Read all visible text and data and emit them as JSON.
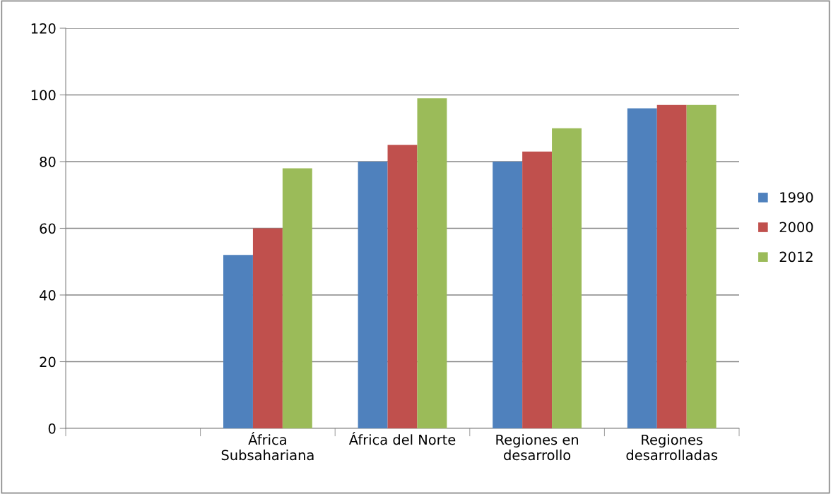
{
  "chart_data": {
    "type": "bar",
    "categories": [
      null,
      "África\nSubsahariana",
      "África del Norte",
      "Regiones en\ndesarrollo",
      "Regiones\ndesarrolladas"
    ],
    "series": [
      {
        "name": "1990",
        "color": "#4f81bd",
        "values": [
          null,
          52,
          80,
          80,
          96
        ]
      },
      {
        "name": "2000",
        "color": "#c0504d",
        "values": [
          null,
          60,
          85,
          83,
          97
        ]
      },
      {
        "name": "2012",
        "color": "#9bbb59",
        "values": [
          null,
          78,
          99,
          90,
          97
        ]
      }
    ],
    "ylim": [
      0,
      120
    ],
    "yticks": [
      0,
      20,
      40,
      60,
      80,
      100,
      120
    ],
    "grid": "y",
    "legend": "right"
  }
}
